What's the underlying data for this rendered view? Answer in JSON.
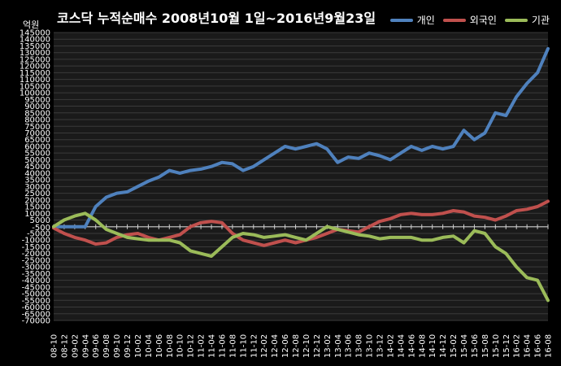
{
  "chart_data": {
    "type": "line",
    "title": "코스닥  누적순매수  2008년10월 1일~2016년9월23일",
    "unit_label": "억원",
    "ylim": [
      -70000,
      145000
    ],
    "y_ticks": [
      145000,
      140000,
      135000,
      130000,
      125000,
      120000,
      115000,
      110000,
      105000,
      100000,
      95000,
      90000,
      85000,
      80000,
      75000,
      70000,
      65000,
      60000,
      55000,
      50000,
      45000,
      40000,
      35000,
      30000,
      25000,
      20000,
      15000,
      10000,
      5000,
      -500,
      -5000,
      -10000,
      -15000,
      -20000,
      -25000,
      -30000,
      -35000,
      -40000,
      -45000,
      -50000,
      -55000,
      -60000,
      -65000,
      -70000
    ],
    "categories": [
      "08-10",
      "08-12",
      "09-02",
      "09-04",
      "09-06",
      "09-08",
      "09-10",
      "09-12",
      "10-02",
      "10-04",
      "10-06",
      "10-08",
      "10-10",
      "10-12",
      "11-02",
      "11-04",
      "11-06",
      "11-08",
      "11-10",
      "11-12",
      "12-02",
      "12-04",
      "12-06",
      "12-08",
      "12-10",
      "12-12",
      "13-02",
      "13-04",
      "13-06",
      "13-08",
      "13-10",
      "13-12",
      "14-02",
      "14-04",
      "14-06",
      "14-08",
      "14-10",
      "14-12",
      "15-02",
      "15-04",
      "15-06",
      "15-08",
      "15-10",
      "15-12",
      "16-02",
      "16-04",
      "16-06",
      "16-08"
    ],
    "legend_position": "top-right",
    "series": [
      {
        "name": "개인",
        "color": "#4F81BD",
        "values": [
          0,
          0,
          0,
          0,
          15000,
          22000,
          25000,
          26000,
          30000,
          34000,
          37000,
          42000,
          40000,
          42000,
          43000,
          45000,
          48000,
          47000,
          42000,
          45000,
          50000,
          55000,
          60000,
          58000,
          60000,
          62000,
          58000,
          48000,
          52000,
          51000,
          55000,
          53000,
          50000,
          55000,
          60000,
          57000,
          60000,
          58000,
          60000,
          72000,
          65000,
          70000,
          85000,
          83000,
          97000,
          107000,
          115000,
          133000
        ]
      },
      {
        "name": "외국인",
        "color": "#C0504D",
        "values": [
          -1000,
          -5000,
          -8000,
          -10000,
          -13000,
          -12000,
          -8000,
          -6000,
          -5000,
          -8000,
          -10000,
          -8000,
          -6000,
          0,
          3000,
          4000,
          3000,
          -5000,
          -10000,
          -12000,
          -14000,
          -12000,
          -10000,
          -12000,
          -10000,
          -8000,
          -5000,
          -2000,
          -3000,
          -4000,
          0,
          4000,
          6000,
          9000,
          10000,
          9000,
          9000,
          10000,
          12000,
          11000,
          8000,
          7000,
          5000,
          8000,
          12000,
          13000,
          15000,
          19000
        ]
      },
      {
        "name": "기관",
        "color": "#9BBB59",
        "values": [
          0,
          5000,
          8000,
          10000,
          5000,
          -2000,
          -5000,
          -8000,
          -9000,
          -10000,
          -10000,
          -10000,
          -12000,
          -18000,
          -20000,
          -22000,
          -15000,
          -8000,
          -5000,
          -6000,
          -8000,
          -7000,
          -6000,
          -8000,
          -10000,
          -5000,
          0,
          -2000,
          -4000,
          -6000,
          -7000,
          -9000,
          -8000,
          -8000,
          -8000,
          -10000,
          -10000,
          -8000,
          -7000,
          -12000,
          -3000,
          -5000,
          -15000,
          -20000,
          -30000,
          -38000,
          -40000,
          -55000
        ]
      }
    ]
  }
}
